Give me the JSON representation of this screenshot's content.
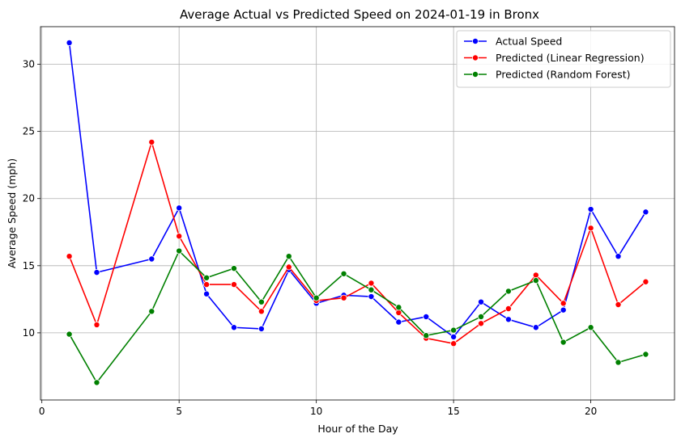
{
  "chart_data": {
    "type": "line",
    "title": "Average Actual vs Predicted Speed on 2024-01-19 in Bronx",
    "xlabel": "Hour of the Day",
    "ylabel": "Average Speed (mph)",
    "xlim": [
      -0.05,
      23.05
    ],
    "ylim": [
      5.0,
      32.8
    ],
    "xticks": [
      0,
      5,
      10,
      15,
      20
    ],
    "yticks": [
      10,
      15,
      20,
      25,
      30
    ],
    "grid": true,
    "legend": "top-right",
    "series": [
      {
        "name": "Actual Speed",
        "color": "#0000ff",
        "x": [
          1,
          2,
          4,
          5,
          6,
          7,
          8,
          9,
          10,
          11,
          12,
          13,
          14,
          15,
          16,
          17,
          18,
          19,
          20,
          21,
          22
        ],
        "values": [
          31.6,
          14.5,
          15.5,
          19.3,
          12.9,
          10.4,
          10.3,
          14.7,
          12.2,
          12.8,
          12.7,
          10.8,
          11.2,
          9.7,
          12.3,
          11.0,
          10.4,
          11.7,
          19.2,
          15.7,
          19.0
        ]
      },
      {
        "name": "Predicted (Linear Regression)",
        "color": "#ff0000",
        "x": [
          1,
          2,
          4,
          5,
          6,
          7,
          8,
          9,
          10,
          11,
          12,
          13,
          14,
          15,
          16,
          17,
          18,
          19,
          20,
          21,
          22
        ],
        "values": [
          15.7,
          10.6,
          24.2,
          17.2,
          13.6,
          13.6,
          11.6,
          14.9,
          12.4,
          12.6,
          13.7,
          11.5,
          9.6,
          9.2,
          10.7,
          11.8,
          14.3,
          12.2,
          17.8,
          12.1,
          13.8
        ]
      },
      {
        "name": "Predicted (Random Forest)",
        "color": "#008000",
        "x": [
          1,
          2,
          4,
          5,
          6,
          7,
          8,
          9,
          10,
          11,
          12,
          13,
          14,
          15,
          16,
          17,
          18,
          19,
          20,
          21,
          22
        ],
        "values": [
          9.9,
          6.3,
          11.6,
          16.1,
          14.1,
          14.8,
          12.3,
          15.7,
          12.6,
          14.4,
          13.2,
          11.9,
          9.8,
          10.2,
          11.2,
          13.1,
          13.9,
          9.3,
          10.4,
          7.8,
          8.4
        ]
      }
    ]
  }
}
